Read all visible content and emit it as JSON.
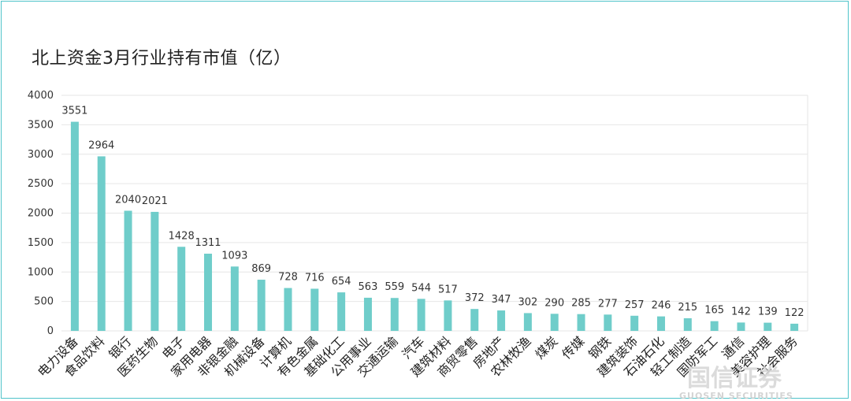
{
  "chart_data": {
    "type": "bar",
    "title": "北上资金3月行业持有市值（亿）",
    "categories": [
      "电力设备",
      "食品饮料",
      "银行",
      "医药生物",
      "电子",
      "家用电器",
      "非银金融",
      "机械设备",
      "计算机",
      "有色金属",
      "基础化工",
      "公用事业",
      "交通运输",
      "汽车",
      "建筑材料",
      "商贸零售",
      "房地产",
      "农林牧渔",
      "煤炭",
      "传媒",
      "钢铁",
      "建筑装饰",
      "石油石化",
      "轻工制造",
      "国防军工",
      "通信",
      "美容护理",
      "社会服务"
    ],
    "values": [
      3551,
      2964,
      2040,
      2021,
      1428,
      1311,
      1093,
      869,
      728,
      716,
      654,
      563,
      559,
      544,
      517,
      372,
      347,
      302,
      290,
      285,
      277,
      257,
      246,
      215,
      165,
      142,
      139,
      122
    ],
    "ylim": [
      0,
      4000
    ],
    "yticks": [
      0,
      500,
      1000,
      1500,
      2000,
      2500,
      3000,
      3500,
      4000
    ],
    "grid": true,
    "bar_color": "#6fcdca",
    "grid_color": "#e6e6e6",
    "frame_color": "#4fc3c9"
  },
  "watermark": {
    "main": "国信证券",
    "sub": "GUOSEN SECURITIES"
  }
}
